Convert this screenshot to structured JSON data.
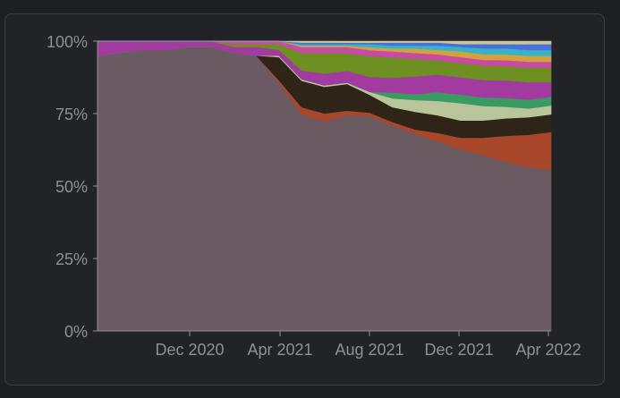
{
  "chart_data": {
    "type": "area",
    "stacked": true,
    "normalized": true,
    "title": "",
    "xlabel": "",
    "ylabel": "",
    "ylim": [
      0,
      100
    ],
    "yticks": [
      "0%",
      "25%",
      "50%",
      "75%",
      "100%"
    ],
    "xticks": [
      "Dec 2020",
      "Apr 2021",
      "Aug 2021",
      "Dec 2021",
      "Apr 2022"
    ],
    "grid": false,
    "legend": "none",
    "x": [
      "2020-08",
      "2020-09",
      "2020-10",
      "2020-11",
      "2020-12",
      "2021-01",
      "2021-02",
      "2021-03",
      "2021-04",
      "2021-05",
      "2021-06",
      "2021-07",
      "2021-08",
      "2021-09",
      "2021-10",
      "2021-11",
      "2021-12",
      "2022-01",
      "2022-02",
      "2022-03",
      "2022-04"
    ],
    "series": [
      {
        "color": "#6b5a62",
        "values": [
          95,
          96,
          97,
          97,
          98,
          98,
          96,
          95,
          86,
          74,
          71,
          73,
          72,
          70,
          67,
          65,
          63,
          61,
          58,
          56,
          55
        ]
      },
      {
        "color": "#a9472a",
        "values": [
          0,
          0,
          0,
          0,
          0,
          0,
          0,
          0,
          0.7,
          2.4,
          2.8,
          1.5,
          1.2,
          1.2,
          1.5,
          3,
          4,
          6,
          9,
          11,
          13
        ]
      },
      {
        "color": "#2f2418",
        "values": [
          0,
          0,
          0,
          0,
          0,
          0,
          0,
          0,
          8,
          9,
          9,
          9,
          6,
          5,
          6,
          6,
          6,
          6,
          6,
          6,
          6
        ]
      },
      {
        "color": "#b9c59a",
        "values": [
          0,
          0,
          0,
          0,
          0,
          0,
          0,
          0,
          0.5,
          0.5,
          0.5,
          0.5,
          1,
          3,
          4,
          5,
          6,
          5,
          4,
          3,
          3
        ]
      },
      {
        "color": "#3a9a62",
        "values": [
          0,
          0,
          0,
          0,
          0,
          0,
          0,
          0,
          0,
          0,
          0,
          0,
          0,
          2,
          2,
          3,
          3,
          3,
          3,
          3,
          3
        ]
      },
      {
        "color": "#a23ba0",
        "values": [
          5,
          4,
          3,
          3,
          2,
          2,
          2,
          3,
          2,
          3,
          4,
          4,
          5,
          5,
          6,
          6,
          6,
          6,
          6,
          6,
          5
        ]
      },
      {
        "color": "#6e8f22",
        "values": [
          0,
          0,
          0,
          0,
          0,
          0,
          1,
          1,
          2,
          6,
          7,
          6,
          7,
          7,
          6,
          5,
          5,
          5,
          5,
          5,
          5
        ]
      },
      {
        "color": "#c94aa6",
        "values": [
          0,
          0,
          0,
          0,
          0,
          0,
          1,
          1,
          1,
          2,
          2,
          2,
          2,
          2,
          2,
          2,
          2,
          2,
          2,
          2,
          2
        ]
      },
      {
        "color": "#d4a23a",
        "values": [
          0,
          0,
          0,
          0,
          0,
          0,
          0,
          0,
          0,
          0.5,
          0.5,
          0.5,
          1,
          1,
          1.5,
          1.5,
          2,
          2,
          2,
          2,
          2
        ]
      },
      {
        "color": "#36b3c8",
        "values": [
          0,
          0,
          0,
          0,
          0,
          0,
          0,
          0,
          0,
          0.5,
          0.5,
          0.5,
          1,
          1,
          1,
          1.5,
          1.5,
          2,
          2,
          2,
          2
        ]
      },
      {
        "color": "#4a6fd6",
        "values": [
          0,
          0,
          0,
          0,
          0,
          0,
          0,
          0,
          0,
          0.5,
          0.5,
          0.5,
          0.5,
          1,
          1,
          1,
          1,
          1.5,
          1.5,
          2,
          2
        ]
      },
      {
        "color": "#c7c7a0",
        "values": [
          0,
          0,
          0,
          0,
          0,
          0,
          0,
          0,
          0,
          0.5,
          0.5,
          0.5,
          0.5,
          0.5,
          0.5,
          0.5,
          1,
          1,
          1,
          1,
          1
        ]
      }
    ]
  }
}
